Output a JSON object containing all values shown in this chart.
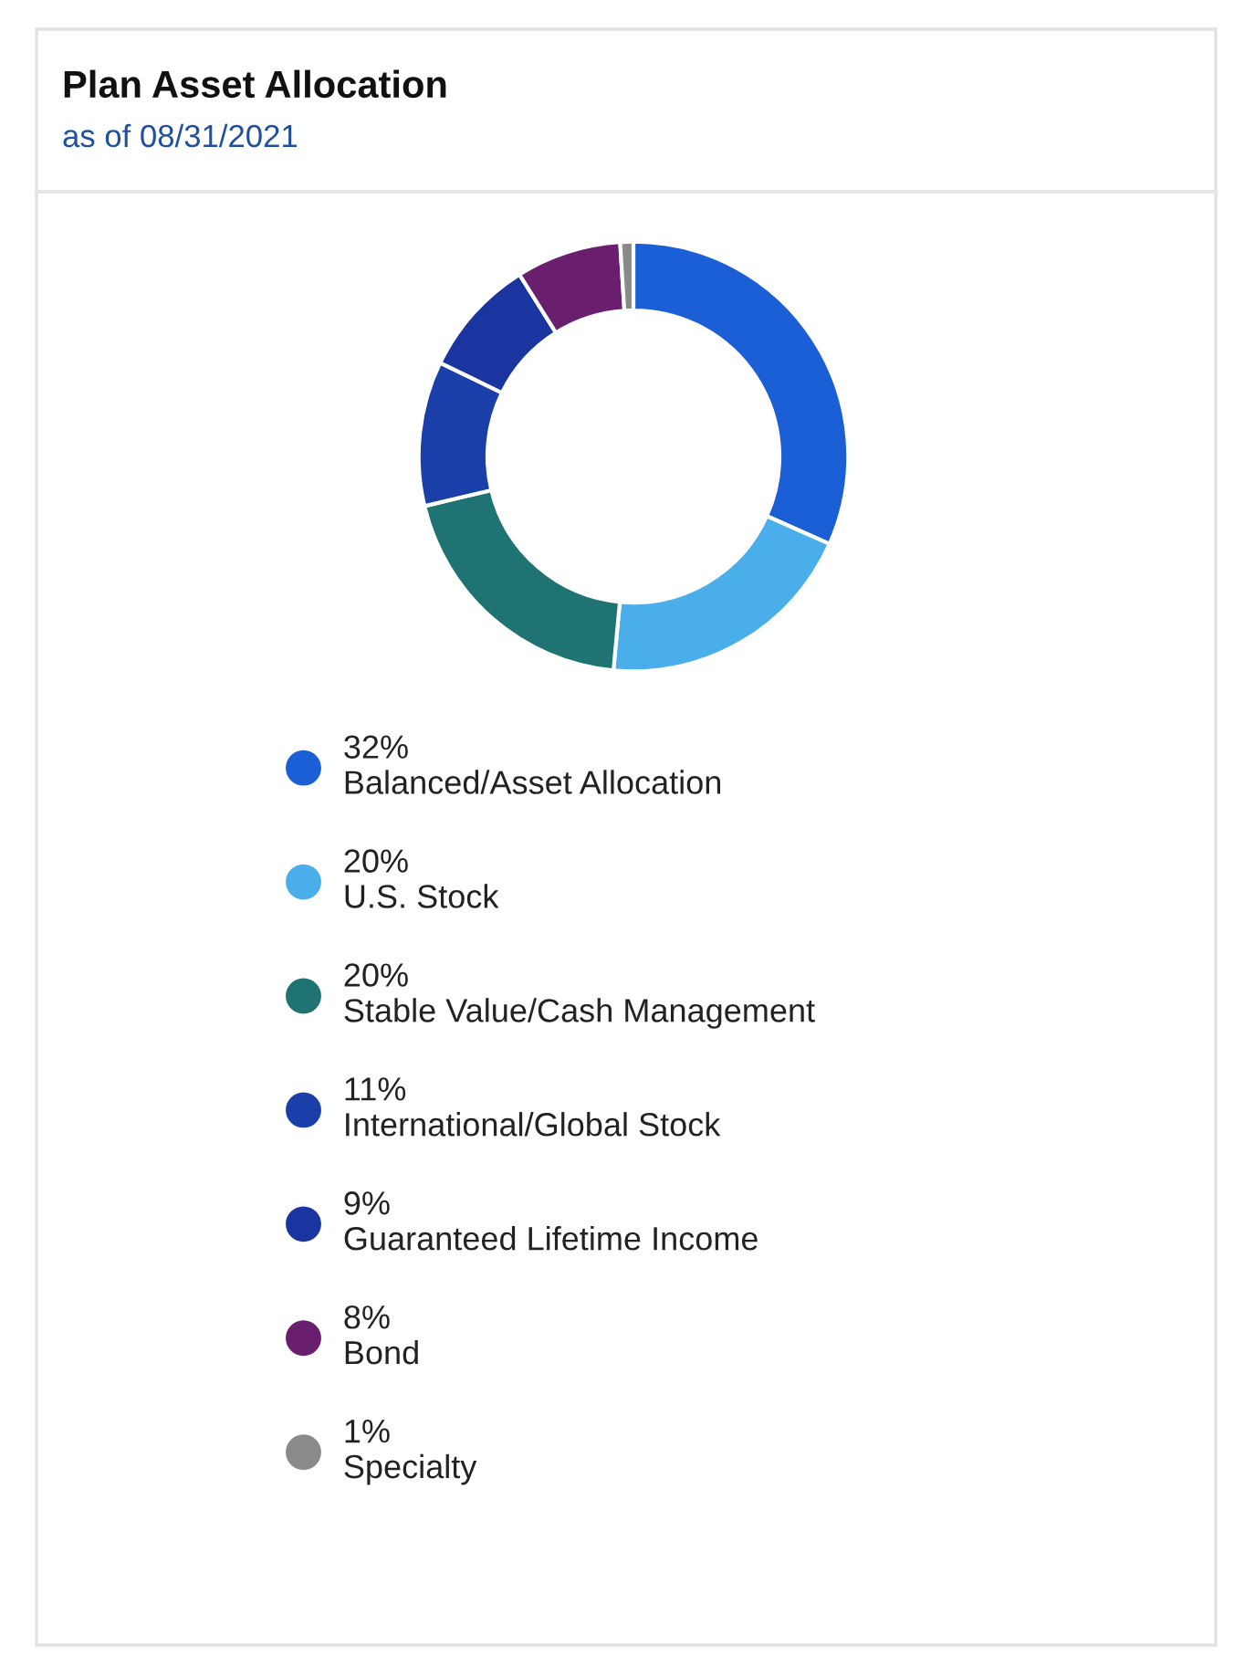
{
  "chart_data": {
    "type": "donut",
    "title": "Plan Asset Allocation",
    "subtitle": "as of 08/31/2021",
    "categories": [
      "Balanced/Asset Allocation",
      "U.S. Stock",
      "Stable Value/Cash Management",
      "International/Global Stock",
      "Guaranteed Lifetime Income",
      "Bond",
      "Specialty"
    ],
    "values": [
      32,
      20,
      20,
      11,
      9,
      8,
      1
    ],
    "value_labels": [
      "32%",
      "20%",
      "20%",
      "11%",
      "9%",
      "8%",
      "1%"
    ],
    "colors": [
      "#1a5fd6",
      "#4aaeea",
      "#1f7373",
      "#1a3fa8",
      "#1a35a0",
      "#6a1e6e",
      "#8a8a8a"
    ],
    "legend": "bottom"
  }
}
